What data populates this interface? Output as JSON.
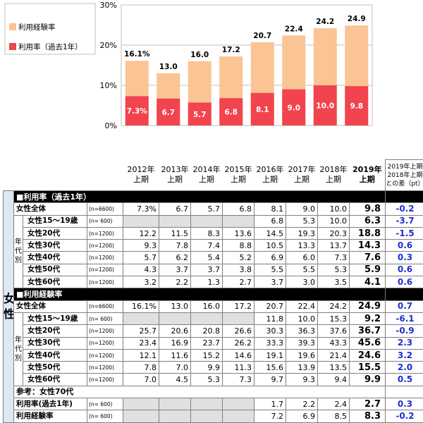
{
  "chart_data": {
    "type": "bar",
    "categories": [
      "2012年\n上期",
      "2013年\n上期",
      "2014年\n上期",
      "2015年\n上期",
      "2016年\n上期",
      "2017年\n上期",
      "2018年\n上期",
      "2019年\n上期"
    ],
    "series": [
      {
        "name": "利用経験率",
        "values": [
          16.1,
          13.0,
          16.0,
          17.2,
          20.7,
          22.4,
          24.2,
          24.9
        ],
        "labels": [
          "16.1%",
          "13.0",
          "16.0",
          "17.2",
          "20.7",
          "22.4",
          "24.2",
          "24.9"
        ],
        "color": "#fbc495"
      },
      {
        "name": "利用率（過去1年）",
        "values": [
          7.3,
          6.7,
          5.7,
          6.8,
          8.1,
          9.0,
          10.0,
          9.8
        ],
        "labels": [
          "7.3%",
          "6.7",
          "5.7",
          "6.8",
          "8.1",
          "9.0",
          "10.0",
          "9.8"
        ],
        "color": "#f2444e"
      }
    ],
    "yticks": [
      "0%",
      "10%",
      "20%",
      "30%"
    ],
    "ylim": [
      0,
      30
    ],
    "diff_header": "2019年上期\n2018年上期\nとの差（pt）"
  },
  "table": {
    "side_label": "女性",
    "age_label": "年代別",
    "sections": [
      {
        "header": "■利用率（過去1年）",
        "rows": [
          {
            "label": "女性全体",
            "n": "(n=6600)",
            "vals": [
              "7.3%",
              "6.7",
              "5.7",
              "6.8",
              "8.1",
              "9.0",
              "10.0"
            ],
            "v19": "9.8",
            "diff": "-0.2",
            "indent": false
          },
          {
            "label": "女性15～19歳",
            "n": "(n=  600)",
            "vals": [
              "",
              "",
              "",
              "",
              "6.8",
              "5.3",
              "10.0"
            ],
            "v19": "6.3",
            "diff": "-3.7",
            "indent": true,
            "gray": [
              0,
              1,
              2,
              3
            ]
          },
          {
            "label": "女性20代",
            "n": "(n=1200)",
            "vals": [
              "12.2",
              "11.5",
              "8.3",
              "13.6",
              "14.5",
              "19.3",
              "20.3"
            ],
            "v19": "18.8",
            "diff": "-1.5",
            "indent": true
          },
          {
            "label": "女性30代",
            "n": "(n=1200)",
            "vals": [
              "9.3",
              "7.8",
              "7.4",
              "8.8",
              "10.5",
              "13.3",
              "13.7"
            ],
            "v19": "14.3",
            "diff": "0.6",
            "indent": true
          },
          {
            "label": "女性40代",
            "n": "(n=1200)",
            "vals": [
              "5.7",
              "6.2",
              "5.4",
              "5.2",
              "6.9",
              "6.0",
              "7.3"
            ],
            "v19": "7.6",
            "diff": "0.3",
            "indent": true
          },
          {
            "label": "女性50代",
            "n": "(n=1200)",
            "vals": [
              "4.3",
              "3.7",
              "3.7",
              "3.8",
              "5.5",
              "5.5",
              "5.3"
            ],
            "v19": "5.9",
            "diff": "0.6",
            "indent": true
          },
          {
            "label": "女性60代",
            "n": "(n=1200)",
            "vals": [
              "3.2",
              "2.2",
              "1.3",
              "2.7",
              "3.7",
              "3.0",
              "3.5"
            ],
            "v19": "4.1",
            "diff": "0.6",
            "indent": true
          }
        ]
      },
      {
        "header": "■利用経験率",
        "rows": [
          {
            "label": "女性全体",
            "n": "(n=6600)",
            "vals": [
              "16.1%",
              "13.0",
              "16.0",
              "17.2",
              "20.7",
              "22.4",
              "24.2"
            ],
            "v19": "24.9",
            "diff": "0.7",
            "indent": false
          },
          {
            "label": "女性15～19歳",
            "n": "(n=  600)",
            "vals": [
              "",
              "",
              "",
              "",
              "11.8",
              "10.0",
              "15.3"
            ],
            "v19": "9.2",
            "diff": "-6.1",
            "indent": true,
            "gray": [
              0,
              1,
              2,
              3
            ]
          },
          {
            "label": "女性20代",
            "n": "(n=1200)",
            "vals": [
              "25.7",
              "20.6",
              "20.8",
              "26.6",
              "30.3",
              "36.3",
              "37.6"
            ],
            "v19": "36.7",
            "diff": "-0.9",
            "indent": true
          },
          {
            "label": "女性30代",
            "n": "(n=1200)",
            "vals": [
              "23.4",
              "16.9",
              "23.7",
              "26.2",
              "33.3",
              "39.3",
              "43.3"
            ],
            "v19": "45.6",
            "diff": "2.3",
            "indent": true
          },
          {
            "label": "女性40代",
            "n": "(n=1200)",
            "vals": [
              "12.1",
              "11.6",
              "15.2",
              "14.6",
              "19.1",
              "19.6",
              "21.4"
            ],
            "v19": "24.6",
            "diff": "3.2",
            "indent": true
          },
          {
            "label": "女性50代",
            "n": "(n=1200)",
            "vals": [
              "7.8",
              "7.0",
              "9.9",
              "11.3",
              "15.6",
              "13.9",
              "13.5"
            ],
            "v19": "15.5",
            "diff": "2.0",
            "indent": true
          },
          {
            "label": "女性60代",
            "n": "(n=1200)",
            "vals": [
              "7.0",
              "4.5",
              "5.3",
              "7.3",
              "9.7",
              "9.3",
              "9.4"
            ],
            "v19": "9.9",
            "diff": "0.5",
            "indent": true
          }
        ]
      },
      {
        "header": "参考：女性70代",
        "ref": true,
        "rows": [
          {
            "label": "利用率(過去1年)",
            "n": "(n=  600)",
            "vals": [
              "",
              "",
              "",
              "",
              "1.7",
              "2.2",
              "2.4"
            ],
            "v19": "2.7",
            "diff": "0.3",
            "indent": false,
            "gray": [
              0,
              1,
              2,
              3
            ]
          },
          {
            "label": "利用経験率",
            "n": "(n=  600)",
            "vals": [
              "",
              "",
              "",
              "",
              "7.2",
              "6.9",
              "8.5"
            ],
            "v19": "8.3",
            "diff": "-0.2",
            "indent": false,
            "gray": [
              0,
              1,
              2,
              3
            ]
          }
        ]
      }
    ]
  }
}
